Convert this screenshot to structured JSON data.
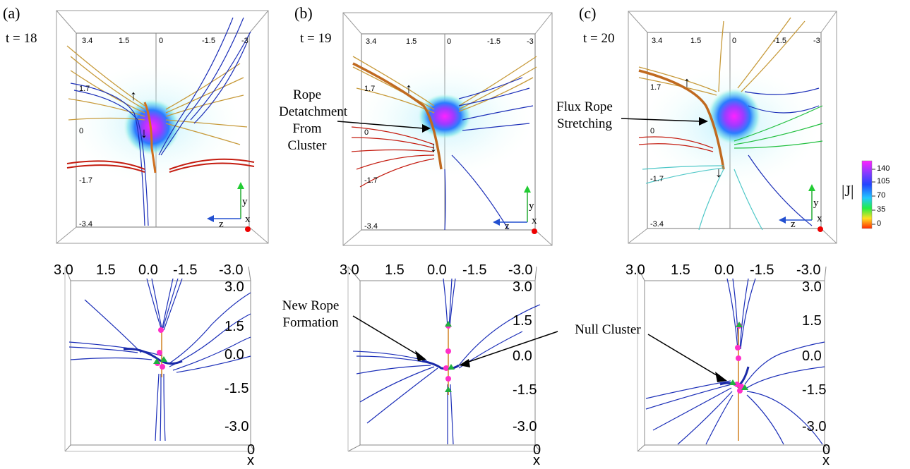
{
  "panels": [
    {
      "label": "(a)",
      "time": "t = 18"
    },
    {
      "label": "(b)",
      "time": "t = 19"
    },
    {
      "label": "(c)",
      "time": "t = 20"
    }
  ],
  "top_axis": {
    "z_ticks": [
      "3.4",
      "1.5",
      "0",
      "-1.5",
      "-3"
    ],
    "y_ticks": [
      "1.7",
      "0",
      "-1.7",
      "-3.4"
    ],
    "axis_names": {
      "y": "y",
      "z": "z",
      "x": "x"
    }
  },
  "bottom_axis": {
    "top_ticks": [
      "3.0",
      "1.5",
      "0.0",
      "-1.5",
      "-3.0"
    ],
    "right_ticks": [
      "3.0",
      "1.5",
      "0.0",
      "-1.5",
      "-3.0"
    ],
    "corner_top": "0",
    "corner_bottom": "0",
    "x_name": "x"
  },
  "annotations": {
    "rope_detach": "Rope\nDetatchment\nFrom\nCluster",
    "flux_rope": "Flux Rope\nStretching",
    "new_rope": "New Rope\nFormation",
    "null_cluster": "Null Cluster"
  },
  "arrows": {
    "up": "↑",
    "down": "↓"
  },
  "colorbar": {
    "title": "|J|",
    "ticks": [
      "140",
      "105",
      "70",
      "35",
      "0"
    ],
    "colors": [
      "#ff22ff",
      "#7a3cff",
      "#2244ff",
      "#22c8ff",
      "#22ee44",
      "#ffe020",
      "#ff2a00"
    ]
  },
  "colors": {
    "field_line_blue": "#1c2fb8",
    "field_line_red": "#c41c10",
    "field_line_gold": "#c79a3a",
    "null_magenta": "#ff2fc8",
    "null_green": "#20b040",
    "current_cyan": "#6fe0ea"
  }
}
